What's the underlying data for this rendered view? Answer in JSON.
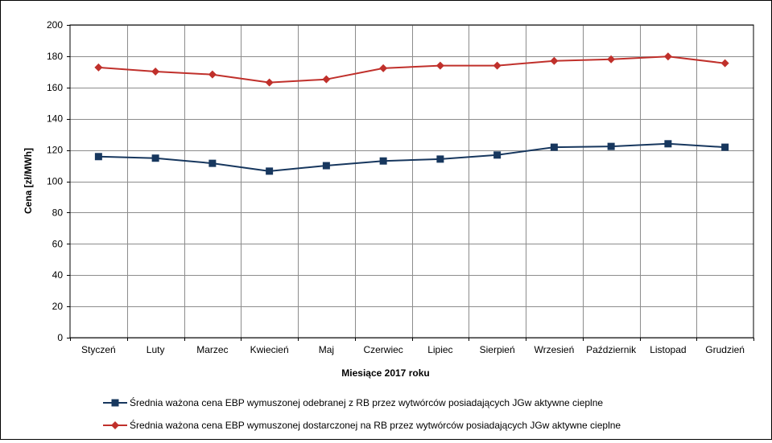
{
  "chart_data": {
    "type": "line",
    "xlabel": "Miesiące 2017  roku",
    "ylabel": "Cena [zł/MWh]",
    "ylim": [
      0,
      200
    ],
    "yticks": [
      0,
      20,
      40,
      60,
      80,
      100,
      120,
      140,
      160,
      180,
      200
    ],
    "grid": true,
    "legend_position": "bottom",
    "categories": [
      "Styczeń",
      "Luty",
      "Marzec",
      "Kwiecień",
      "Maj",
      "Czerwiec",
      "Lipiec",
      "Sierpień",
      "Wrzesień",
      "Październik",
      "Listopad",
      "Grudzień"
    ],
    "series": [
      {
        "name": "Średnia ważona cena EBP wymuszonej odebranej z RB przez wytwórców posiadających JGw aktywne cieplne",
        "color": "#17375e",
        "marker": "square",
        "values": [
          115.8,
          114.8,
          111.5,
          106.5,
          110.0,
          113.0,
          114.2,
          116.8,
          121.8,
          122.3,
          124.0,
          121.8
        ]
      },
      {
        "name": "Średnia ważona cena EBP wymuszonej dostarczonej na RB przez wytwórców posiadających JGw aktywne cieplne",
        "color": "#c0302b",
        "marker": "diamond",
        "values": [
          172.8,
          170.2,
          168.3,
          163.2,
          165.2,
          172.3,
          174.0,
          174.0,
          177.0,
          178.0,
          179.8,
          175.5
        ]
      }
    ]
  }
}
